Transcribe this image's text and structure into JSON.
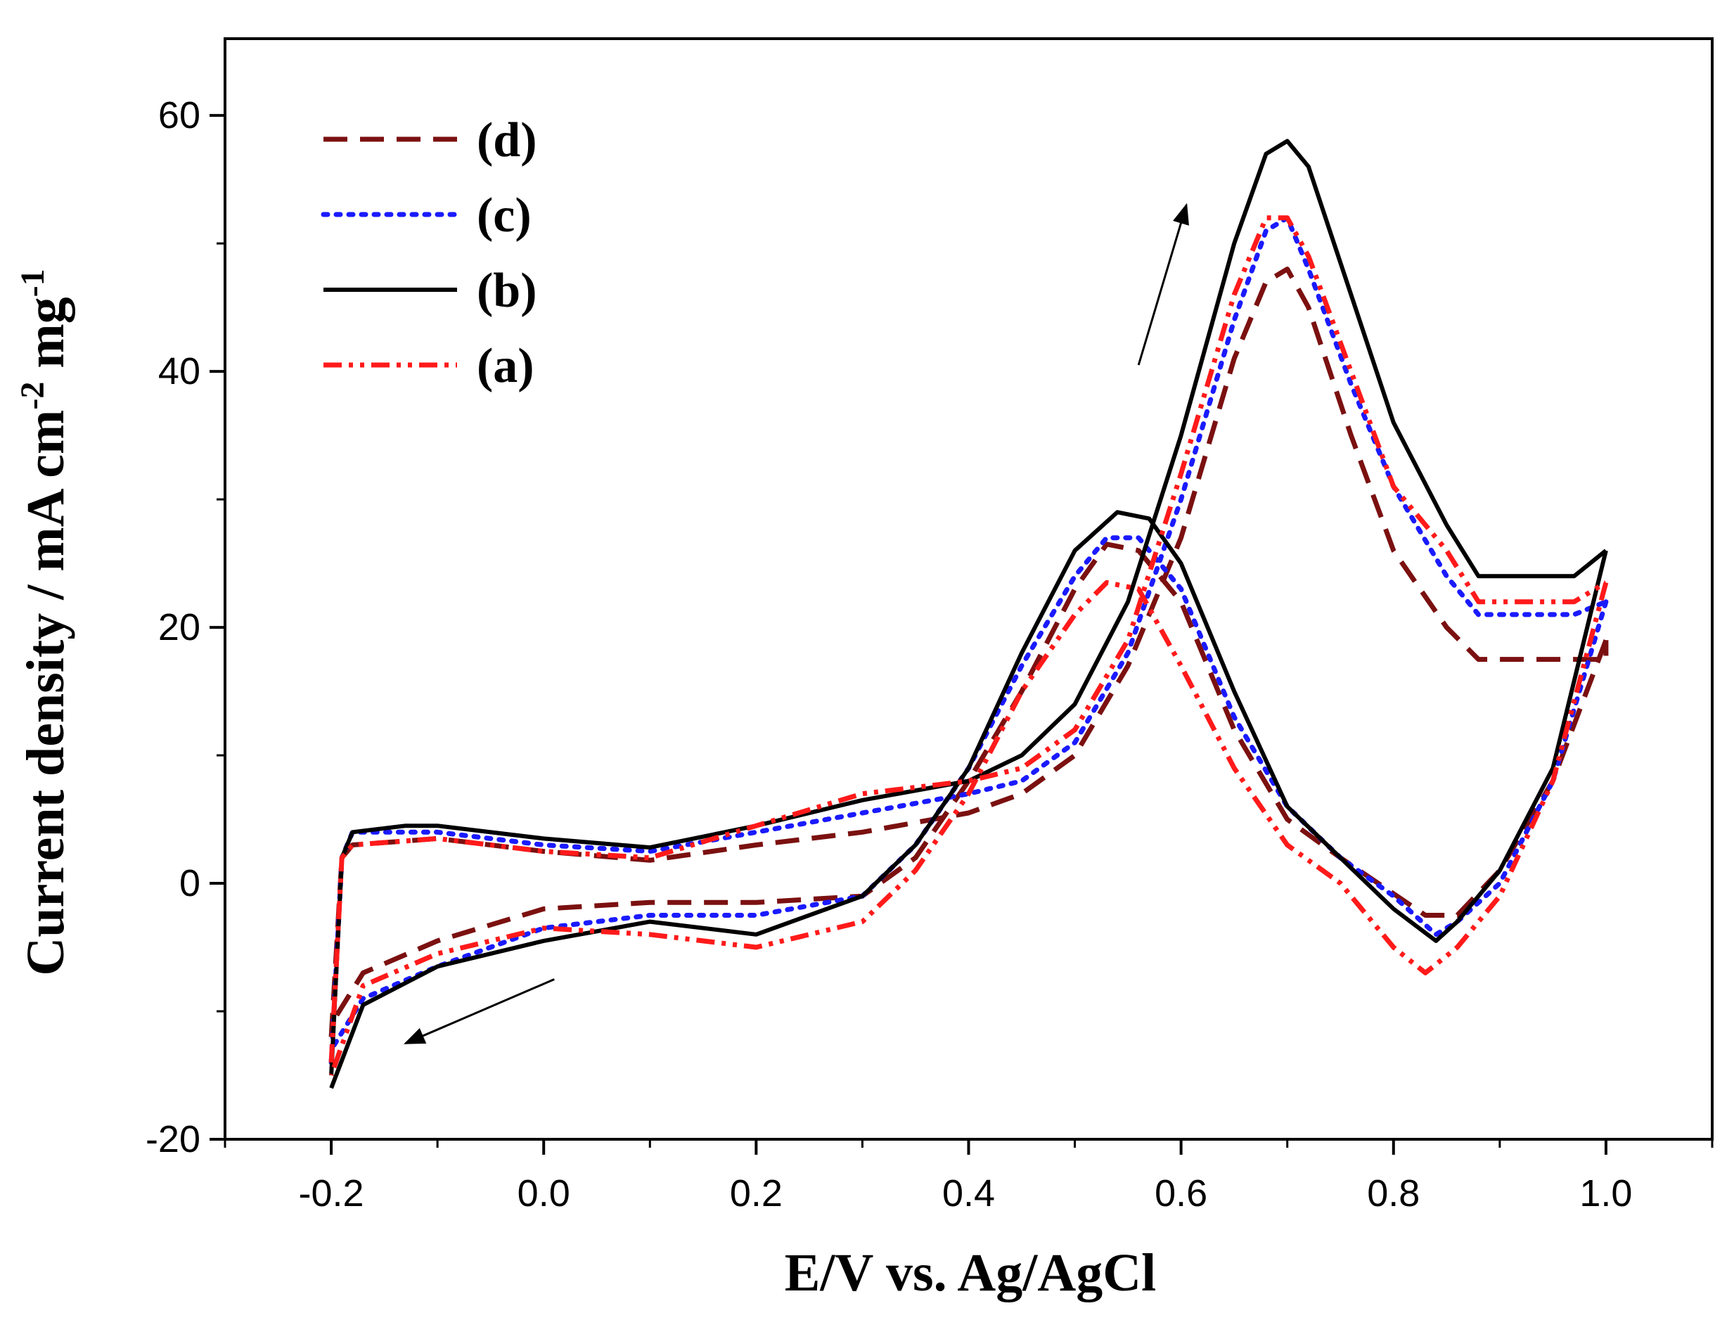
{
  "chart_data": {
    "type": "line",
    "title": "",
    "xlabel": "E/V vs. Ag/AgCl",
    "ylabel_parts": [
      "Current density / mA cm",
      "-2",
      " mg",
      "-1"
    ],
    "xlim": [
      -0.3,
      1.1
    ],
    "ylim": [
      -20,
      66
    ],
    "xticks": [
      -0.2,
      0.0,
      0.2,
      0.4,
      0.6,
      0.8,
      1.0
    ],
    "xtick_labels": [
      "-0.2",
      "0.0",
      "0.2",
      "0.4",
      "0.6",
      "0.8",
      "1.0"
    ],
    "yticks": [
      -20,
      0,
      20,
      40,
      60
    ],
    "ytick_labels": [
      "-20",
      "0",
      "20",
      "40",
      "60"
    ],
    "grid": false,
    "legend_position": "top-left",
    "series": [
      {
        "name": "(d)",
        "color": "#7b1010",
        "dash": "dashed",
        "forward": [
          [
            -0.2,
            -12
          ],
          [
            -0.19,
            2
          ],
          [
            -0.18,
            3
          ],
          [
            -0.1,
            3.5
          ],
          [
            0,
            2.5
          ],
          [
            0.1,
            1.8
          ],
          [
            0.2,
            3
          ],
          [
            0.3,
            4
          ],
          [
            0.4,
            5.5
          ],
          [
            0.45,
            7
          ],
          [
            0.5,
            10
          ],
          [
            0.55,
            17
          ],
          [
            0.6,
            27
          ],
          [
            0.65,
            41
          ],
          [
            0.68,
            47
          ],
          [
            0.7,
            48
          ],
          [
            0.72,
            45
          ],
          [
            0.76,
            35
          ],
          [
            0.8,
            26
          ],
          [
            0.85,
            20
          ],
          [
            0.88,
            17.5
          ],
          [
            1.0,
            17.5
          ],
          [
            1.0,
            19
          ]
        ],
        "reverse": [
          [
            1.0,
            19
          ],
          [
            0.95,
            8
          ],
          [
            0.9,
            1
          ],
          [
            0.86,
            -2.5
          ],
          [
            0.83,
            -2.5
          ],
          [
            0.75,
            2
          ],
          [
            0.7,
            5
          ],
          [
            0.65,
            12
          ],
          [
            0.6,
            22
          ],
          [
            0.56,
            26
          ],
          [
            0.53,
            26.5
          ],
          [
            0.5,
            23
          ],
          [
            0.45,
            15
          ],
          [
            0.4,
            8
          ],
          [
            0.35,
            2
          ],
          [
            0.3,
            -1
          ],
          [
            0.2,
            -1.5
          ],
          [
            0.1,
            -1.5
          ],
          [
            0.0,
            -2
          ],
          [
            -0.1,
            -4.5
          ],
          [
            -0.17,
            -7
          ],
          [
            -0.2,
            -11
          ]
        ]
      },
      {
        "name": "(c)",
        "color": "#1a1aff",
        "dash": "dotted",
        "forward": [
          [
            -0.2,
            -14
          ],
          [
            -0.19,
            2
          ],
          [
            -0.18,
            4
          ],
          [
            -0.1,
            4
          ],
          [
            0,
            3
          ],
          [
            0.1,
            2.5
          ],
          [
            0.2,
            4
          ],
          [
            0.3,
            5.5
          ],
          [
            0.4,
            7
          ],
          [
            0.45,
            8
          ],
          [
            0.5,
            11
          ],
          [
            0.55,
            18
          ],
          [
            0.6,
            30
          ],
          [
            0.65,
            44
          ],
          [
            0.68,
            51
          ],
          [
            0.7,
            52
          ],
          [
            0.72,
            48
          ],
          [
            0.76,
            39
          ],
          [
            0.8,
            31
          ],
          [
            0.85,
            24
          ],
          [
            0.88,
            21
          ],
          [
            0.97,
            21
          ],
          [
            1.0,
            22
          ]
        ],
        "reverse": [
          [
            1.0,
            22
          ],
          [
            0.95,
            8
          ],
          [
            0.9,
            0
          ],
          [
            0.86,
            -3
          ],
          [
            0.84,
            -4
          ],
          [
            0.8,
            -1
          ],
          [
            0.75,
            2
          ],
          [
            0.7,
            6
          ],
          [
            0.65,
            13
          ],
          [
            0.6,
            23
          ],
          [
            0.56,
            27
          ],
          [
            0.53,
            27
          ],
          [
            0.5,
            24
          ],
          [
            0.45,
            17
          ],
          [
            0.4,
            9
          ],
          [
            0.35,
            3
          ],
          [
            0.3,
            -1
          ],
          [
            0.2,
            -2.5
          ],
          [
            0.1,
            -2.5
          ],
          [
            0.0,
            -3.5
          ],
          [
            -0.1,
            -6.5
          ],
          [
            -0.17,
            -9
          ],
          [
            -0.2,
            -13
          ]
        ]
      },
      {
        "name": "(b)",
        "color": "#000000",
        "dash": "solid",
        "forward": [
          [
            -0.2,
            -15
          ],
          [
            -0.19,
            2
          ],
          [
            -0.18,
            4
          ],
          [
            -0.13,
            4.5
          ],
          [
            -0.1,
            4.5
          ],
          [
            0,
            3.5
          ],
          [
            0.1,
            2.8
          ],
          [
            0.2,
            4.5
          ],
          [
            0.3,
            6.5
          ],
          [
            0.4,
            8
          ],
          [
            0.45,
            10
          ],
          [
            0.5,
            14
          ],
          [
            0.55,
            22
          ],
          [
            0.6,
            35
          ],
          [
            0.65,
            50
          ],
          [
            0.68,
            57
          ],
          [
            0.7,
            58
          ],
          [
            0.72,
            56
          ],
          [
            0.76,
            46
          ],
          [
            0.8,
            36
          ],
          [
            0.85,
            28
          ],
          [
            0.88,
            24
          ],
          [
            0.97,
            24
          ],
          [
            1.0,
            26
          ]
        ],
        "reverse": [
          [
            1.0,
            26
          ],
          [
            0.95,
            9
          ],
          [
            0.9,
            1
          ],
          [
            0.86,
            -3
          ],
          [
            0.84,
            -4.5
          ],
          [
            0.8,
            -2
          ],
          [
            0.75,
            2
          ],
          [
            0.7,
            6
          ],
          [
            0.65,
            15
          ],
          [
            0.6,
            25
          ],
          [
            0.57,
            28.5
          ],
          [
            0.54,
            29
          ],
          [
            0.5,
            26
          ],
          [
            0.45,
            18
          ],
          [
            0.4,
            9
          ],
          [
            0.35,
            3
          ],
          [
            0.3,
            -1
          ],
          [
            0.2,
            -4
          ],
          [
            0.1,
            -3
          ],
          [
            0.0,
            -4.5
          ],
          [
            -0.1,
            -6.5
          ],
          [
            -0.17,
            -9.5
          ],
          [
            -0.2,
            -16
          ]
        ]
      },
      {
        "name": "(a)",
        "color": "#ff1a1a",
        "dash": "dashdot",
        "forward": [
          [
            -0.2,
            -14
          ],
          [
            -0.19,
            2
          ],
          [
            -0.18,
            3
          ],
          [
            -0.1,
            3.5
          ],
          [
            0,
            2.5
          ],
          [
            0.1,
            2.0
          ],
          [
            0.2,
            4.5
          ],
          [
            0.3,
            7
          ],
          [
            0.4,
            8
          ],
          [
            0.45,
            9
          ],
          [
            0.5,
            12
          ],
          [
            0.55,
            19
          ],
          [
            0.6,
            32
          ],
          [
            0.65,
            46
          ],
          [
            0.68,
            52
          ],
          [
            0.7,
            52
          ],
          [
            0.72,
            49
          ],
          [
            0.76,
            40
          ],
          [
            0.8,
            31
          ],
          [
            0.85,
            26
          ],
          [
            0.88,
            22
          ],
          [
            0.97,
            22
          ],
          [
            1.0,
            23.5
          ]
        ],
        "reverse": [
          [
            1.0,
            23.5
          ],
          [
            0.95,
            8
          ],
          [
            0.9,
            -1
          ],
          [
            0.86,
            -5
          ],
          [
            0.83,
            -7
          ],
          [
            0.8,
            -5
          ],
          [
            0.75,
            0
          ],
          [
            0.7,
            3
          ],
          [
            0.65,
            9
          ],
          [
            0.6,
            17
          ],
          [
            0.56,
            23
          ],
          [
            0.53,
            23.5
          ],
          [
            0.5,
            21
          ],
          [
            0.45,
            15
          ],
          [
            0.4,
            7
          ],
          [
            0.35,
            1
          ],
          [
            0.3,
            -3
          ],
          [
            0.2,
            -5
          ],
          [
            0.1,
            -4
          ],
          [
            0.0,
            -3.5
          ],
          [
            -0.1,
            -5.5
          ],
          [
            -0.17,
            -8
          ],
          [
            -0.2,
            -15
          ]
        ]
      }
    ],
    "annotations": [
      {
        "name": "arrow-forward-scan",
        "from": [
          0.56,
          40.5
        ],
        "to": [
          0.605,
          53
        ]
      },
      {
        "name": "arrow-reverse-scan",
        "from": [
          0.01,
          -7.5
        ],
        "to": [
          -0.13,
          -12.5
        ]
      }
    ]
  }
}
